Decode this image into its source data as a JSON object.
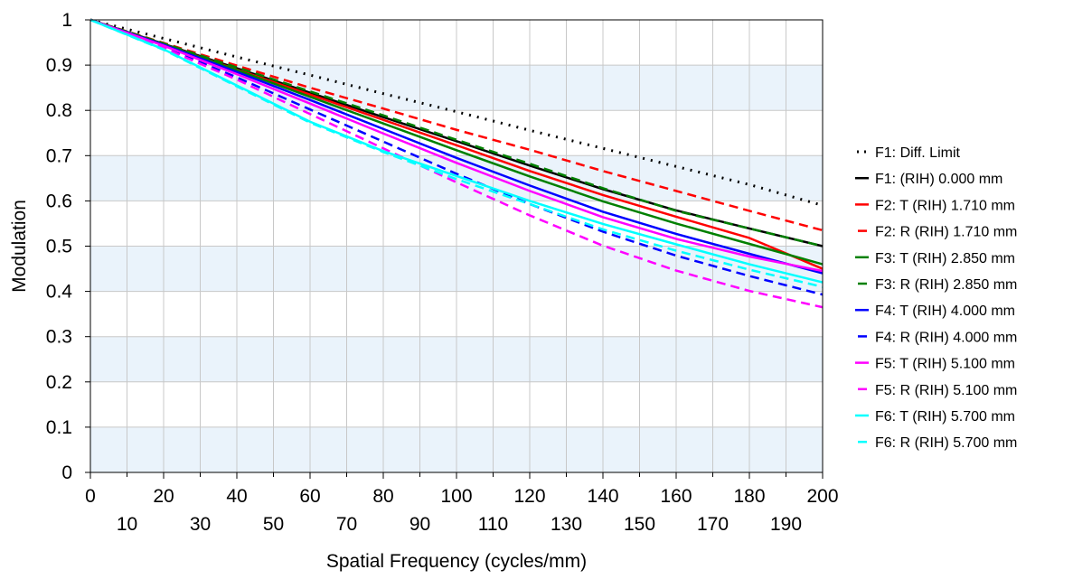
{
  "chart_data": {
    "type": "line",
    "title": "",
    "xlabel": "Spatial Frequency (cycles/mm)",
    "ylabel": "Modulation",
    "xlim": [
      0,
      200
    ],
    "ylim": [
      0,
      1
    ],
    "x_ticks_upper": [
      "0",
      "20",
      "40",
      "60",
      "80",
      "100",
      "120",
      "140",
      "160",
      "180",
      "200"
    ],
    "x_ticks_lower": [
      "10",
      "30",
      "50",
      "70",
      "90",
      "110",
      "130",
      "150",
      "170",
      "190"
    ],
    "y_ticks": [
      "0",
      "0.1",
      "0.2",
      "0.3",
      "0.4",
      "0.5",
      "0.6",
      "0.7",
      "0.8",
      "0.9",
      "1"
    ],
    "grid": true,
    "legend_position": "right",
    "x": [
      0,
      20,
      40,
      60,
      80,
      100,
      120,
      140,
      160,
      180,
      200
    ],
    "series": [
      {
        "name": "F1: Diff. Limit",
        "color": "#000000",
        "style": "dotted",
        "values": [
          1.0,
          0.959,
          0.918,
          0.878,
          0.837,
          0.797,
          0.756,
          0.716,
          0.676,
          0.636,
          0.59
        ]
      },
      {
        "name": "F1: (RIH) 0.000 mm",
        "color": "#000000",
        "style": "solid",
        "values": [
          1.0,
          0.947,
          0.893,
          0.839,
          0.785,
          0.732,
          0.678,
          0.626,
          0.579,
          0.539,
          0.5
        ]
      },
      {
        "name": "F2: T (RIH) 1.710 mm",
        "color": "#ff0000",
        "style": "solid",
        "values": [
          1.0,
          0.946,
          0.89,
          0.835,
          0.779,
          0.723,
          0.666,
          0.613,
          0.565,
          0.518,
          0.45
        ]
      },
      {
        "name": "F2: R (RIH) 1.710 mm",
        "color": "#ff0000",
        "style": "dashed",
        "values": [
          1.0,
          0.949,
          0.899,
          0.85,
          0.804,
          0.757,
          0.713,
          0.666,
          0.622,
          0.578,
          0.535
        ]
      },
      {
        "name": "F3: T (RIH) 2.850 mm",
        "color": "#008000",
        "style": "solid",
        "values": [
          1.0,
          0.946,
          0.889,
          0.83,
          0.771,
          0.712,
          0.654,
          0.599,
          0.55,
          0.505,
          0.46
        ]
      },
      {
        "name": "F3: R (RIH) 2.850 mm",
        "color": "#008000",
        "style": "dashed",
        "values": [
          1.0,
          0.948,
          0.895,
          0.842,
          0.789,
          0.735,
          0.682,
          0.628,
          0.578,
          0.539,
          0.5
        ]
      },
      {
        "name": "F4: T (RIH) 4.000 mm",
        "color": "#0000ff",
        "style": "solid",
        "values": [
          1.0,
          0.945,
          0.885,
          0.823,
          0.759,
          0.695,
          0.634,
          0.576,
          0.527,
          0.483,
          0.44
        ]
      },
      {
        "name": "F4: R (RIH) 4.000 mm",
        "color": "#0000ff",
        "style": "dashed",
        "values": [
          1.0,
          0.94,
          0.873,
          0.802,
          0.731,
          0.66,
          0.593,
          0.532,
          0.479,
          0.434,
          0.393
        ]
      },
      {
        "name": "F5: T (RIH) 5.100 mm",
        "color": "#ff00ff",
        "style": "solid",
        "values": [
          1.0,
          0.943,
          0.88,
          0.815,
          0.749,
          0.684,
          0.622,
          0.564,
          0.516,
          0.477,
          0.445
        ]
      },
      {
        "name": "F5: R (RIH) 5.100 mm",
        "color": "#ff00ff",
        "style": "dashed",
        "values": [
          1.0,
          0.938,
          0.868,
          0.792,
          0.716,
          0.641,
          0.568,
          0.501,
          0.446,
          0.401,
          0.365
        ]
      },
      {
        "name": "F6: T (RIH) 5.700 mm",
        "color": "#00ffff",
        "style": "solid",
        "values": [
          1.0,
          0.935,
          0.855,
          0.775,
          0.71,
          0.655,
          0.6,
          0.549,
          0.504,
          0.46,
          0.42
        ]
      },
      {
        "name": "F6: R (RIH) 5.700 mm",
        "color": "#00ffff",
        "style": "dashed",
        "values": [
          1.0,
          0.934,
          0.853,
          0.773,
          0.708,
          0.648,
          0.593,
          0.537,
          0.49,
          0.448,
          0.41
        ]
      }
    ]
  }
}
